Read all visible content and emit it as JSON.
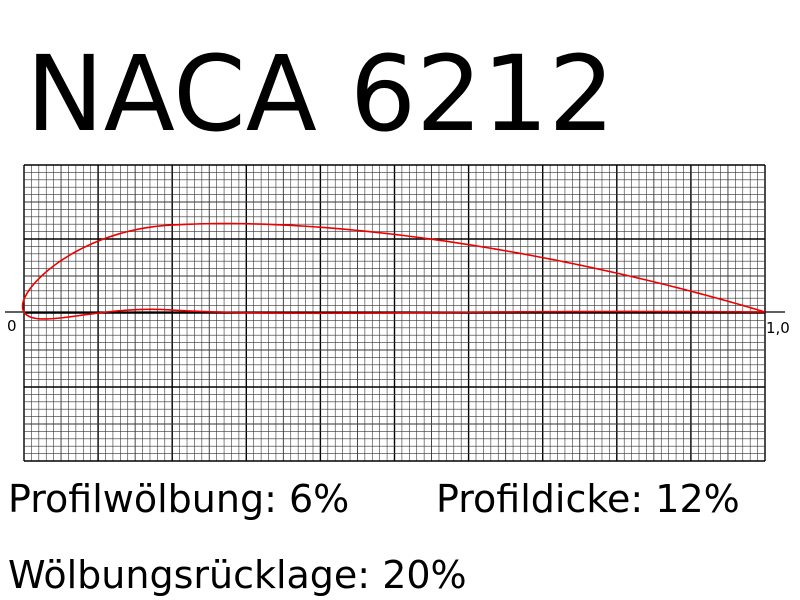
{
  "title": "NACA 6212",
  "axis": {
    "start": "0",
    "end": "1,0"
  },
  "parameters": {
    "camber": {
      "label": "Profilwölbung: 6%",
      "value": 6
    },
    "thickness": {
      "label": "Profildicke: 12%",
      "value": 12
    },
    "position": {
      "label": "Wölbungsrücklage: 20%",
      "value": 20
    }
  }
}
